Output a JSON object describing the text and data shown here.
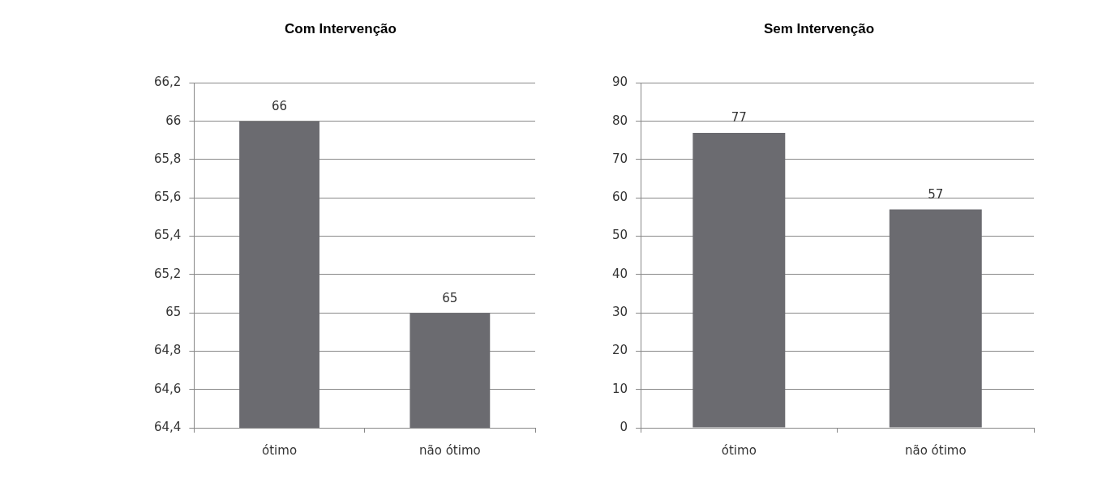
{
  "chart_data": [
    {
      "type": "bar",
      "title": "Com Intervenção",
      "categories": [
        "ótimo",
        "não ótimo"
      ],
      "values": [
        66,
        65
      ],
      "color": "#6b6b70",
      "ylim": [
        64.4,
        66.2
      ],
      "yticks": [
        {
          "value": 64.4,
          "label": "64,4"
        },
        {
          "value": 64.6,
          "label": "64,6"
        },
        {
          "value": 64.8,
          "label": "64,8"
        },
        65,
        {
          "value": 65.2,
          "label": "65,2"
        },
        {
          "value": 65.4,
          "label": "65,4"
        },
        {
          "value": 65.6,
          "label": "65,6"
        },
        {
          "value": 65.8,
          "label": "65,8"
        },
        66,
        {
          "value": 66.2,
          "label": "66,2"
        }
      ],
      "grid": "y",
      "data_labels": true
    },
    {
      "type": "bar",
      "title": "Sem Intervenção",
      "categories": [
        "ótimo",
        "não ótimo"
      ],
      "values": [
        77,
        57
      ],
      "color": "#6b6b70",
      "ylim": [
        0,
        90
      ],
      "yticks": [
        0,
        10,
        20,
        30,
        40,
        50,
        60,
        70,
        80,
        90
      ],
      "grid": "y",
      "data_labels": true
    }
  ]
}
